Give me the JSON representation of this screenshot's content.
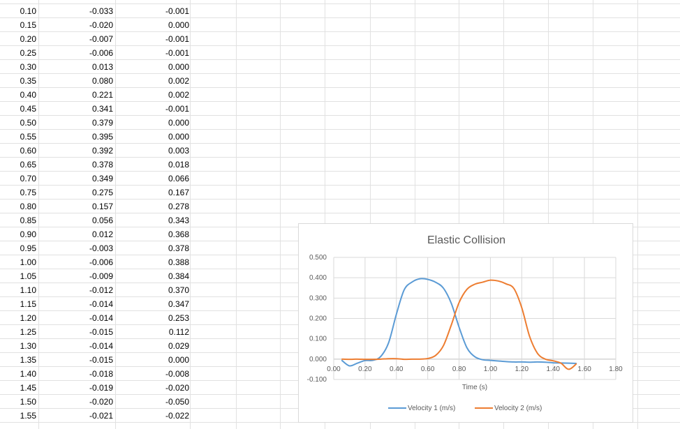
{
  "table": {
    "rows": [
      {
        "t": "0.10",
        "v1": "-0.033",
        "v2": "-0.001"
      },
      {
        "t": "0.15",
        "v1": "-0.020",
        "v2": "0.000"
      },
      {
        "t": "0.20",
        "v1": "-0.007",
        "v2": "-0.001"
      },
      {
        "t": "0.25",
        "v1": "-0.006",
        "v2": "-0.001"
      },
      {
        "t": "0.30",
        "v1": "0.013",
        "v2": "0.000"
      },
      {
        "t": "0.35",
        "v1": "0.080",
        "v2": "0.002"
      },
      {
        "t": "0.40",
        "v1": "0.221",
        "v2": "0.002"
      },
      {
        "t": "0.45",
        "v1": "0.341",
        "v2": "-0.001"
      },
      {
        "t": "0.50",
        "v1": "0.379",
        "v2": "0.000"
      },
      {
        "t": "0.55",
        "v1": "0.395",
        "v2": "0.000"
      },
      {
        "t": "0.60",
        "v1": "0.392",
        "v2": "0.003"
      },
      {
        "t": "0.65",
        "v1": "0.378",
        "v2": "0.018"
      },
      {
        "t": "0.70",
        "v1": "0.349",
        "v2": "0.066"
      },
      {
        "t": "0.75",
        "v1": "0.275",
        "v2": "0.167"
      },
      {
        "t": "0.80",
        "v1": "0.157",
        "v2": "0.278"
      },
      {
        "t": "0.85",
        "v1": "0.056",
        "v2": "0.343"
      },
      {
        "t": "0.90",
        "v1": "0.012",
        "v2": "0.368"
      },
      {
        "t": "0.95",
        "v1": "-0.003",
        "v2": "0.378"
      },
      {
        "t": "1.00",
        "v1": "-0.006",
        "v2": "0.388"
      },
      {
        "t": "1.05",
        "v1": "-0.009",
        "v2": "0.384"
      },
      {
        "t": "1.10",
        "v1": "-0.012",
        "v2": "0.370"
      },
      {
        "t": "1.15",
        "v1": "-0.014",
        "v2": "0.347"
      },
      {
        "t": "1.20",
        "v1": "-0.014",
        "v2": "0.253"
      },
      {
        "t": "1.25",
        "v1": "-0.015",
        "v2": "0.112"
      },
      {
        "t": "1.30",
        "v1": "-0.014",
        "v2": "0.029"
      },
      {
        "t": "1.35",
        "v1": "-0.015",
        "v2": "0.000"
      },
      {
        "t": "1.40",
        "v1": "-0.018",
        "v2": "-0.008"
      },
      {
        "t": "1.45",
        "v1": "-0.019",
        "v2": "-0.020"
      },
      {
        "t": "1.50",
        "v1": "-0.020",
        "v2": "-0.050"
      },
      {
        "t": "1.55",
        "v1": "-0.021",
        "v2": "-0.022"
      }
    ]
  },
  "chart_data": {
    "type": "line",
    "title": "Elastic Collision",
    "xlabel": "Time (s)",
    "ylabel": "",
    "xlim": [
      0,
      1.8
    ],
    "ylim": [
      -0.1,
      0.5
    ],
    "x_ticks": [
      "0.00",
      "0.20",
      "0.40",
      "0.60",
      "0.80",
      "1.00",
      "1.20",
      "1.40",
      "1.60",
      "1.80"
    ],
    "y_ticks": [
      "-0.100",
      "0.000",
      "0.100",
      "0.200",
      "0.300",
      "0.400",
      "0.500"
    ],
    "grid": true,
    "legend": "bottom",
    "x": [
      0.05,
      0.1,
      0.15,
      0.2,
      0.25,
      0.3,
      0.35,
      0.4,
      0.45,
      0.5,
      0.55,
      0.6,
      0.65,
      0.7,
      0.75,
      0.8,
      0.85,
      0.9,
      0.95,
      1.0,
      1.05,
      1.1,
      1.15,
      1.2,
      1.25,
      1.3,
      1.35,
      1.4,
      1.45,
      1.5,
      1.55
    ],
    "series": [
      {
        "name": "Velocity 1 (m/s)",
        "color": "#5b9bd5",
        "values": [
          -0.005,
          -0.033,
          -0.02,
          -0.007,
          -0.006,
          0.013,
          0.08,
          0.221,
          0.341,
          0.379,
          0.395,
          0.392,
          0.378,
          0.349,
          0.275,
          0.157,
          0.056,
          0.012,
          -0.003,
          -0.006,
          -0.009,
          -0.012,
          -0.014,
          -0.014,
          -0.015,
          -0.014,
          -0.015,
          -0.018,
          -0.019,
          -0.02,
          -0.021
        ]
      },
      {
        "name": "Velocity 2 (m/s)",
        "color": "#ed7d31",
        "values": [
          0.0,
          -0.001,
          0.0,
          -0.001,
          -0.001,
          0.0,
          0.002,
          0.002,
          -0.001,
          0.0,
          0.0,
          0.003,
          0.018,
          0.066,
          0.167,
          0.278,
          0.343,
          0.368,
          0.378,
          0.388,
          0.384,
          0.37,
          0.347,
          0.253,
          0.112,
          0.029,
          0.0,
          -0.008,
          -0.02,
          -0.05,
          -0.022
        ]
      }
    ]
  }
}
